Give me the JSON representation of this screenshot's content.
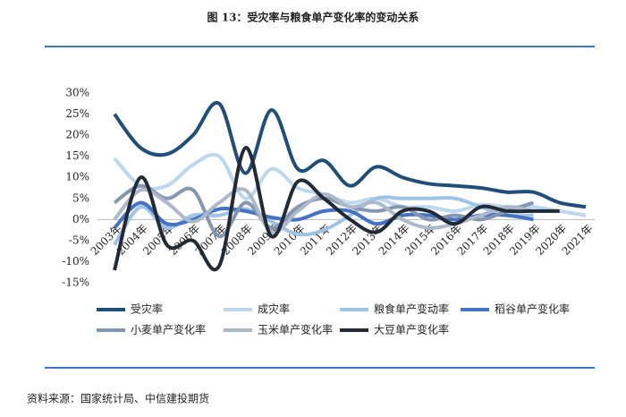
{
  "chart_data": {
    "type": "line",
    "title": "图 13：受灾率与粮食单产变化率的变动关系",
    "source": "资料来源：国家统计局、中信建投期货",
    "categories": [
      "2003年",
      "2004年",
      "2005年",
      "2006年",
      "2007年",
      "2008年",
      "2009年",
      "2010年",
      "2011年",
      "2012年",
      "2013年",
      "2014年",
      "2015年",
      "2016年",
      "2017年",
      "2018年",
      "2019年",
      "2020年",
      "2021年"
    ],
    "ylim": [
      -15,
      30
    ],
    "yticks": [
      {
        "value": -15,
        "label": "-15%"
      },
      {
        "value": -10,
        "label": "-10%"
      },
      {
        "value": -5,
        "label": "-5%"
      },
      {
        "value": 0,
        "label": "0%"
      },
      {
        "value": 5,
        "label": "5%"
      },
      {
        "value": 10,
        "label": "10%"
      },
      {
        "value": 15,
        "label": "15%"
      },
      {
        "value": 20,
        "label": "20%"
      },
      {
        "value": 25,
        "label": "25%"
      },
      {
        "value": 30,
        "label": "30%"
      }
    ],
    "grid": false,
    "series": [
      {
        "name": "受灾率",
        "color": "#1f4e79",
        "values": [
          25,
          17,
          15.5,
          20,
          27.5,
          11,
          26,
          12,
          14,
          8,
          12.5,
          10,
          8.5,
          8,
          7.5,
          6.5,
          6.5,
          4,
          3
        ]
      },
      {
        "name": "成灾率",
        "color": "#bdd7ee",
        "values": [
          14.5,
          8,
          8,
          13,
          15,
          5,
          12,
          7.5,
          6,
          4,
          5,
          3,
          3,
          2,
          3.5,
          3,
          3,
          2,
          1
        ]
      },
      {
        "name": "粮食单产变动率",
        "color": "#9dc3e6",
        "values": [
          -6,
          3,
          -2,
          1,
          1,
          2.5,
          -0.5,
          -3.5,
          -2.5,
          1,
          5,
          5,
          5,
          5,
          3,
          1,
          1,
          null,
          null
        ]
      },
      {
        "name": "稻谷单产变化率",
        "color": "#4472c4",
        "values": [
          -2,
          4,
          -1,
          0,
          2.5,
          2,
          0.5,
          0,
          2,
          2,
          -1,
          1,
          1,
          0,
          1,
          1,
          0,
          null,
          null
        ]
      },
      {
        "name": "小麦单产变化率",
        "color": "#8497b0",
        "values": [
          4,
          8,
          5,
          7,
          -4,
          4,
          -2,
          3,
          5,
          3,
          2,
          3,
          0,
          1,
          0,
          2,
          4,
          null,
          null
        ]
      },
      {
        "name": "玉米单产变化率",
        "color": "#adb9ca",
        "values": [
          0,
          7,
          4,
          -0.5,
          4,
          7,
          -3,
          2,
          6,
          3,
          4,
          0,
          -2,
          -1,
          1,
          3,
          2,
          null,
          null
        ]
      },
      {
        "name": "大豆单产变化率",
        "color": "#222a35",
        "values": [
          -12,
          10,
          -6,
          -5,
          -11,
          17,
          -4,
          9,
          5,
          0,
          -3,
          2,
          2,
          -1,
          3,
          2,
          2,
          2,
          null
        ]
      }
    ]
  }
}
